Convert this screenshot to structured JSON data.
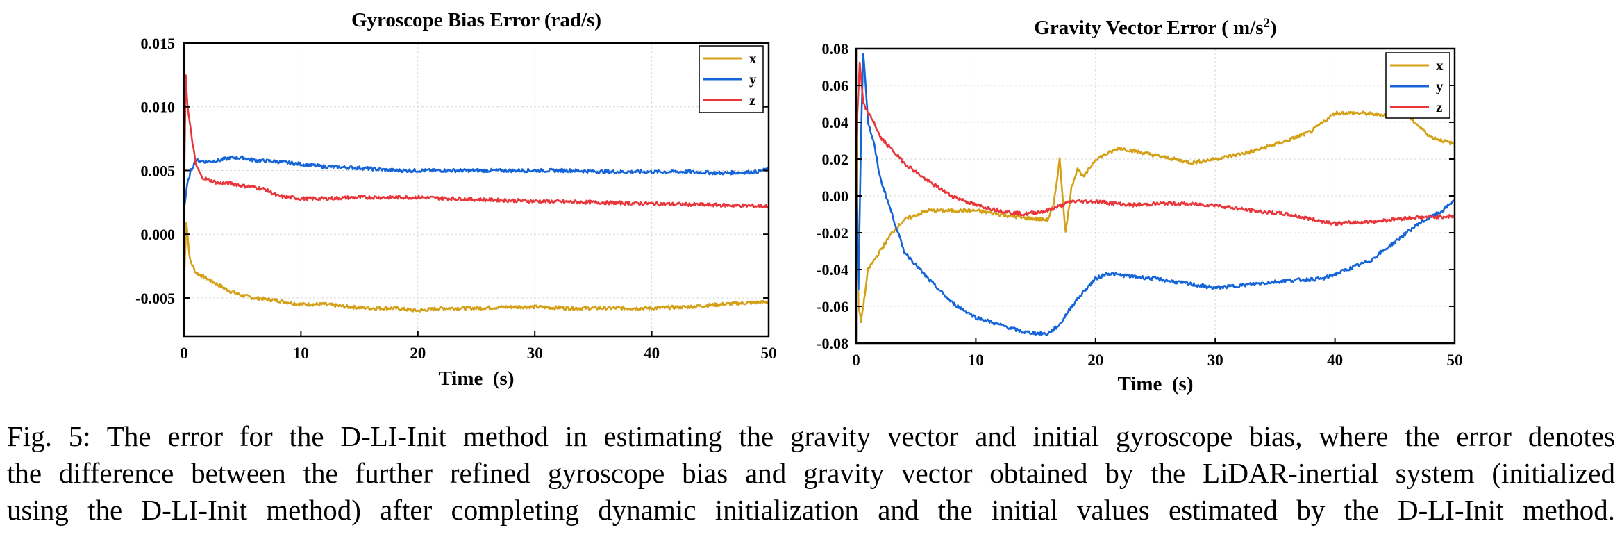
{
  "chart_data": [
    {
      "type": "line",
      "title": "Gyroscope Bias Error (rad/s)",
      "xlabel": "Time  (s)",
      "ylabel": "",
      "xlim": [
        0,
        50
      ],
      "ylim": [
        -0.008,
        0.015
      ],
      "xticks": [
        "0",
        "10",
        "20",
        "30",
        "40",
        "50"
      ],
      "yticks": [
        "0.015",
        "0.010",
        "0.005",
        "0.000",
        "-0.005"
      ],
      "ytick_values": [
        0.015,
        0.01,
        0.005,
        0.0,
        -0.005
      ],
      "grid": true,
      "legend_position": "top-right",
      "series": [
        {
          "name": "x",
          "color": "#D4A017",
          "x": [
            0,
            0.2,
            0.5,
            1,
            2,
            3,
            4,
            5,
            6,
            8,
            10,
            12,
            14,
            16,
            18,
            20,
            22,
            25,
            28,
            30,
            33,
            36,
            40,
            43,
            46,
            50
          ],
          "y": [
            -0.004,
            0.001,
            -0.002,
            -0.003,
            -0.0035,
            -0.004,
            -0.0045,
            -0.0048,
            -0.005,
            -0.0052,
            -0.0055,
            -0.0055,
            -0.0057,
            -0.0058,
            -0.0058,
            -0.006,
            -0.0058,
            -0.0058,
            -0.0057,
            -0.0057,
            -0.0058,
            -0.0058,
            -0.0058,
            -0.0057,
            -0.0055,
            -0.0053
          ]
        },
        {
          "name": "y",
          "color": "#1565D8",
          "x": [
            0,
            0.3,
            0.6,
            1,
            2,
            3,
            4,
            5,
            6,
            8,
            10,
            12,
            15,
            18,
            20,
            22,
            25,
            28,
            30,
            33,
            36,
            40,
            43,
            46,
            49,
            50
          ],
          "y": [
            0.002,
            0.004,
            0.005,
            0.0058,
            0.0057,
            0.0058,
            0.006,
            0.006,
            0.0058,
            0.0057,
            0.0055,
            0.0053,
            0.0052,
            0.005,
            0.005,
            0.005,
            0.005,
            0.005,
            0.005,
            0.005,
            0.0049,
            0.0049,
            0.0049,
            0.0048,
            0.0049,
            0.0051
          ]
        },
        {
          "name": "z",
          "color": "#E8363A",
          "x": [
            0,
            0.15,
            0.3,
            0.6,
            1,
            1.5,
            2,
            3,
            4,
            5,
            6,
            7,
            8,
            10,
            12,
            15,
            18,
            20,
            23,
            26,
            30,
            35,
            40,
            45,
            50
          ],
          "y": [
            0.003,
            0.0125,
            0.01,
            0.008,
            0.0055,
            0.0045,
            0.0043,
            0.004,
            0.004,
            0.0038,
            0.0037,
            0.0035,
            0.003,
            0.0028,
            0.0028,
            0.0029,
            0.0029,
            0.0029,
            0.0028,
            0.0027,
            0.0026,
            0.0025,
            0.0024,
            0.0023,
            0.0022
          ]
        }
      ]
    },
    {
      "type": "line",
      "title": "Gravity Vector Error ( m/s",
      "title_sup": "2",
      "title_end": ")",
      "xlabel": "Time  (s)",
      "ylabel": "",
      "xlim": [
        0,
        50
      ],
      "ylim": [
        -0.08,
        0.08
      ],
      "xticks": [
        "0",
        "10",
        "20",
        "30",
        "40",
        "50"
      ],
      "yticks": [
        "0.08",
        "0.06",
        "0.04",
        "0.02",
        "0.00",
        "-0.02",
        "-0.04",
        "-0.06",
        "-0.08"
      ],
      "ytick_values": [
        0.08,
        0.06,
        0.04,
        0.02,
        0.0,
        -0.02,
        -0.04,
        -0.06,
        -0.08
      ],
      "grid": true,
      "legend_position": "top-right",
      "series": [
        {
          "name": "x",
          "color": "#D4A017",
          "x": [
            0,
            0.2,
            0.4,
            0.6,
            1,
            1.5,
            2,
            3,
            4,
            6,
            8,
            10,
            12,
            14,
            16,
            16.5,
            17,
            17.5,
            18,
            18.5,
            19,
            20,
            22,
            25,
            28,
            30,
            33,
            36,
            38,
            40,
            42,
            44,
            46,
            48,
            50
          ],
          "y": [
            0.05,
            -0.06,
            -0.068,
            -0.06,
            -0.04,
            -0.035,
            -0.03,
            -0.02,
            -0.013,
            -0.008,
            -0.008,
            -0.008,
            -0.01,
            -0.012,
            -0.013,
            -0.005,
            0.02,
            -0.02,
            0.005,
            0.015,
            0.01,
            0.02,
            0.026,
            0.022,
            0.018,
            0.02,
            0.024,
            0.03,
            0.035,
            0.045,
            0.045,
            0.044,
            0.044,
            0.032,
            0.028
          ]
        },
        {
          "name": "y",
          "color": "#1565D8",
          "x": [
            0,
            0.2,
            0.4,
            0.6,
            0.8,
            1,
            1.5,
            2,
            3,
            4,
            6,
            8,
            10,
            12,
            14,
            16,
            17,
            18,
            19,
            20,
            21,
            22,
            25,
            28,
            30,
            33,
            36,
            39,
            41,
            43,
            45,
            47,
            49,
            50
          ],
          "y": [
            0,
            -0.05,
            0.03,
            0.078,
            0.06,
            0.04,
            0.028,
            0.01,
            -0.01,
            -0.03,
            -0.045,
            -0.058,
            -0.066,
            -0.07,
            -0.074,
            -0.075,
            -0.07,
            -0.06,
            -0.052,
            -0.045,
            -0.042,
            -0.043,
            -0.045,
            -0.048,
            -0.05,
            -0.048,
            -0.046,
            -0.045,
            -0.04,
            -0.035,
            -0.025,
            -0.015,
            -0.008,
            -0.002
          ]
        },
        {
          "name": "z",
          "color": "#E8363A",
          "x": [
            0,
            0.3,
            0.6,
            1,
            1.5,
            2,
            3,
            4,
            6,
            8,
            10,
            12,
            14,
            16,
            18,
            20,
            23,
            26,
            30,
            33,
            36,
            40,
            43,
            46,
            50
          ],
          "y": [
            0.03,
            0.072,
            0.05,
            0.045,
            0.04,
            0.032,
            0.025,
            0.018,
            0.008,
            0.0,
            -0.005,
            -0.008,
            -0.01,
            -0.008,
            -0.003,
            -0.003,
            -0.005,
            -0.004,
            -0.005,
            -0.008,
            -0.01,
            -0.015,
            -0.014,
            -0.012,
            -0.011
          ]
        }
      ]
    }
  ],
  "caption": {
    "lines": [
      "Fig. 5: The error for the D-LI-Init method in estimating the gravity vector and initial gyroscope bias, where the error denotes",
      "the difference between the further refined gyroscope bias and gravity vector obtained by the LiDAR-inertial system (initialized",
      "using the D-LI-Init method) after completing dynamic initialization and the initial values estimated by the D-LI-Init method."
    ]
  }
}
